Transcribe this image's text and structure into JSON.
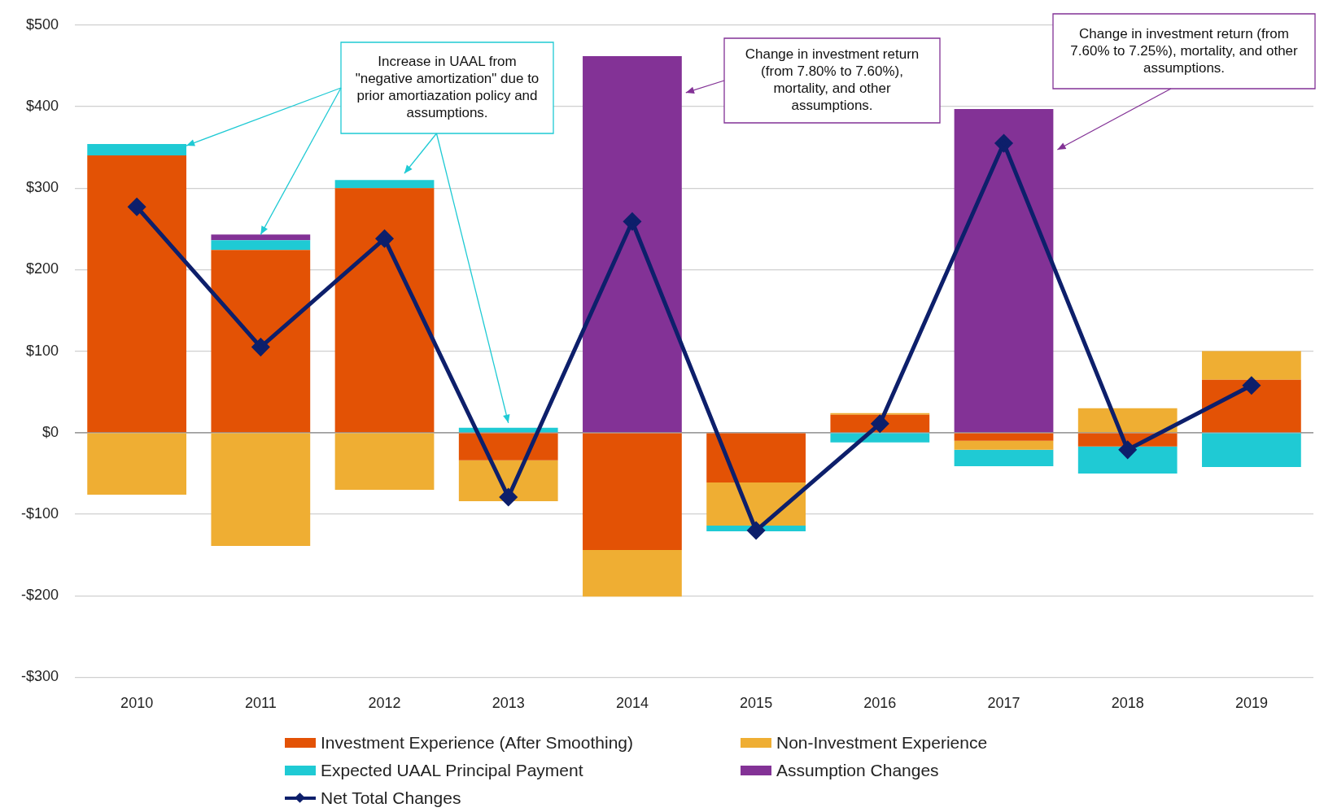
{
  "chart_data": {
    "type": "bar",
    "stacked": true,
    "categories": [
      "2010",
      "2011",
      "2012",
      "2013",
      "2014",
      "2015",
      "2016",
      "2017",
      "2018",
      "2019"
    ],
    "series": [
      {
        "name": "Investment Experience (After Smoothing)",
        "color": "#e35205",
        "values": [
          340,
          224,
          300,
          -34,
          -144,
          -61,
          22,
          -10,
          -17,
          65
        ]
      },
      {
        "name": "Non-Investment Experience",
        "color": "#efae33",
        "values": [
          -76,
          -139,
          -70,
          -50,
          -57,
          -53,
          2,
          -11,
          30,
          35
        ]
      },
      {
        "name": "Expected UAAL Principal Payment",
        "color": "#1fcad4",
        "values": [
          14,
          12,
          10,
          6,
          null,
          -7,
          -12,
          -20,
          -33,
          -42
        ]
      },
      {
        "name": "Assumption Changes",
        "color": "#833296",
        "values": [
          null,
          7,
          null,
          null,
          462,
          null,
          null,
          397,
          null,
          null
        ]
      },
      {
        "name": "Net Total Changes",
        "color": "#0d1f6b",
        "type": "line",
        "marker": "diamond",
        "values": [
          277,
          105,
          238,
          -79,
          259,
          -120,
          11,
          355,
          -21,
          58
        ]
      }
    ],
    "ylim": [
      -300,
      500
    ],
    "yticks": [
      {
        "value": -300,
        "label": "-$300"
      },
      {
        "value": -200,
        "label": "-$200"
      },
      {
        "value": -100,
        "label": "-$100"
      },
      {
        "value": 0,
        "label": "$0"
      },
      {
        "value": 100,
        "label": "$100"
      },
      {
        "value": 200,
        "label": "$200"
      },
      {
        "value": 300,
        "label": "$300"
      },
      {
        "value": 400,
        "label": "$400"
      },
      {
        "value": 500,
        "label": "$500"
      }
    ],
    "grid": "y",
    "legend": "bottom",
    "annotations": [
      {
        "text": "Increase in UAAL from \"negative amortization\" due to prior amortiazation policy and assumptions.",
        "x": "2011",
        "y": 243
      },
      "Change in investment return (from 7.80% to 7.60%), mortality, and other assumptions.",
      "Change in investment return (from 7.60% to 7.25%), mortality, and other assumptions."
    ]
  }
}
